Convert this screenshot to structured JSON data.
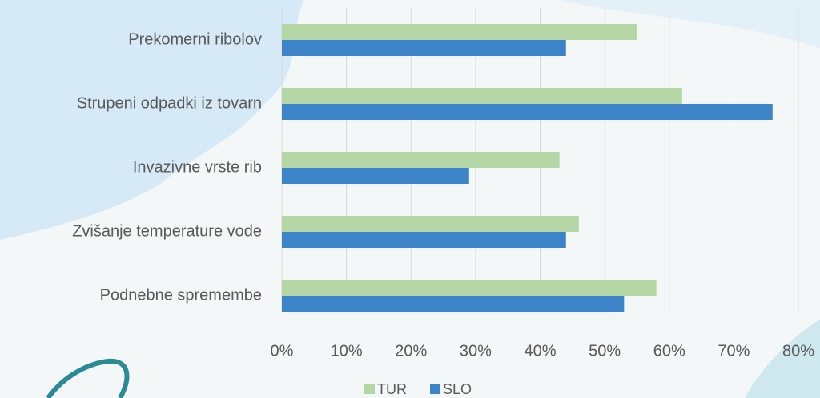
{
  "chart_data": {
    "type": "bar",
    "orientation": "horizontal",
    "categories": [
      "Prekomerni ribolov",
      "Strupeni odpadki iz tovarn",
      "Invazivne vrste rib",
      "Zvišanje temperature vode",
      "Podnebne spremembe"
    ],
    "series": [
      {
        "name": "TUR",
        "color": "#b5d7a6",
        "values": [
          55,
          62,
          43,
          46,
          58
        ]
      },
      {
        "name": "SLO",
        "color": "#3d83c9",
        "values": [
          44,
          76,
          29,
          44,
          53
        ]
      }
    ],
    "xlim": [
      0,
      80
    ],
    "xticks": [
      {
        "value": 0,
        "label": "0%"
      },
      {
        "value": 10,
        "label": "10%"
      },
      {
        "value": 20,
        "label": "20%"
      },
      {
        "value": 30,
        "label": "30%"
      },
      {
        "value": 40,
        "label": "40%"
      },
      {
        "value": 50,
        "label": "50%"
      },
      {
        "value": 60,
        "label": "60%"
      },
      {
        "value": 70,
        "label": "70%"
      },
      {
        "value": 80,
        "label": "80%"
      }
    ],
    "grid": true,
    "legend": "bottom"
  }
}
